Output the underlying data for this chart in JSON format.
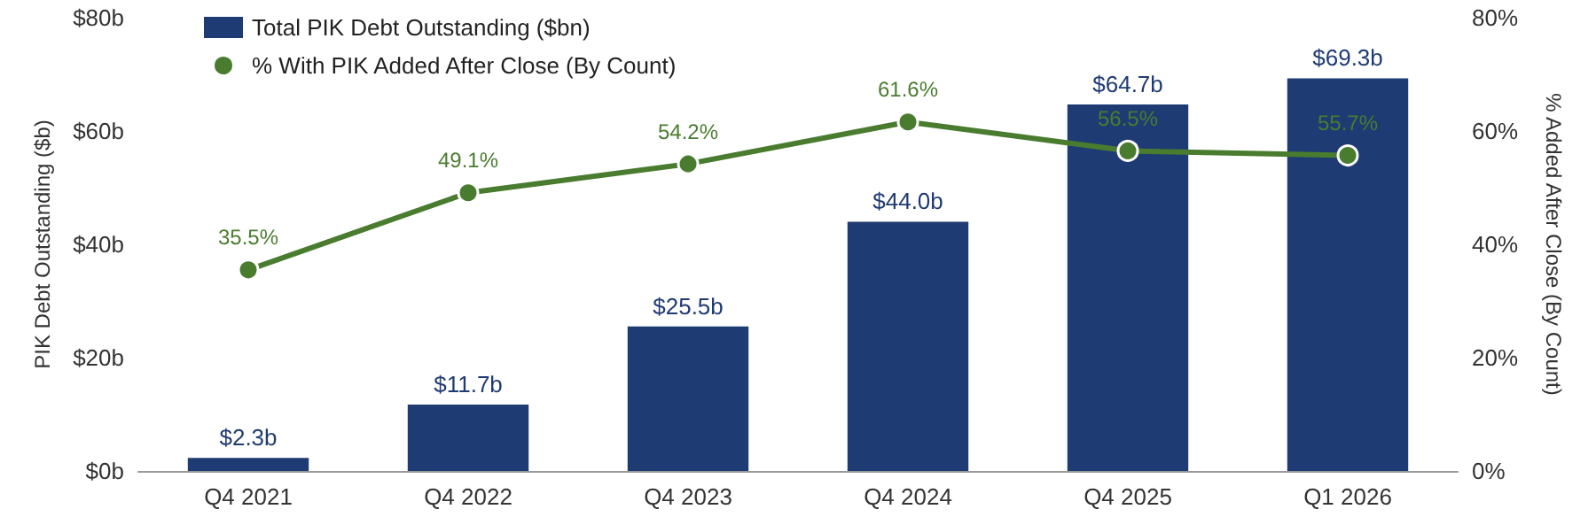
{
  "chart_data": {
    "type": "bar",
    "categories": [
      "Q4 2021",
      "Q4 2022",
      "Q4 2023",
      "Q4 2024",
      "Q4 2025",
      "Q1 2026"
    ],
    "ylabel": "PIK Debt Outstanding ($b)",
    "y2label": "% Added After Close (By Count)",
    "series": [
      {
        "name": "Total PIK Debt Outstanding ($bn)",
        "color": "#1f3b73",
        "values": [
          2.3,
          11.7,
          25.5,
          44.0,
          64.7,
          69.3
        ],
        "value_labels": [
          "$2.3b",
          "$11.7b",
          "$25.5b",
          "$44.0b",
          "$64.7b",
          "$69.3b"
        ]
      },
      {
        "name": "% With PIK Added After Close (By Count)",
        "type": "line",
        "axis": "y2",
        "color": "#4a7c2f",
        "marker": "circle",
        "values": [
          35.5,
          49.1,
          54.2,
          61.6,
          56.5,
          55.7
        ],
        "value_labels": [
          "35.5%",
          "49.1%",
          "54.2%",
          "61.6%",
          "56.5%",
          "55.7%"
        ]
      }
    ],
    "ylim": [
      0,
      80
    ],
    "yticks": [
      {
        "value": 0,
        "label": "$0b"
      },
      {
        "value": 20,
        "label": "$20b"
      },
      {
        "value": 40,
        "label": "$40b"
      },
      {
        "value": 60,
        "label": "$60b"
      },
      {
        "value": 80,
        "label": "$80b"
      }
    ],
    "y2lim": [
      0,
      80
    ],
    "y2ticks": [
      {
        "value": 0,
        "label": "0%"
      },
      {
        "value": 20,
        "label": "20%"
      },
      {
        "value": 40,
        "label": "40%"
      },
      {
        "value": 60,
        "label": "60%"
      },
      {
        "value": 80,
        "label": "80%"
      }
    ],
    "legend": "top left",
    "grid": false
  }
}
